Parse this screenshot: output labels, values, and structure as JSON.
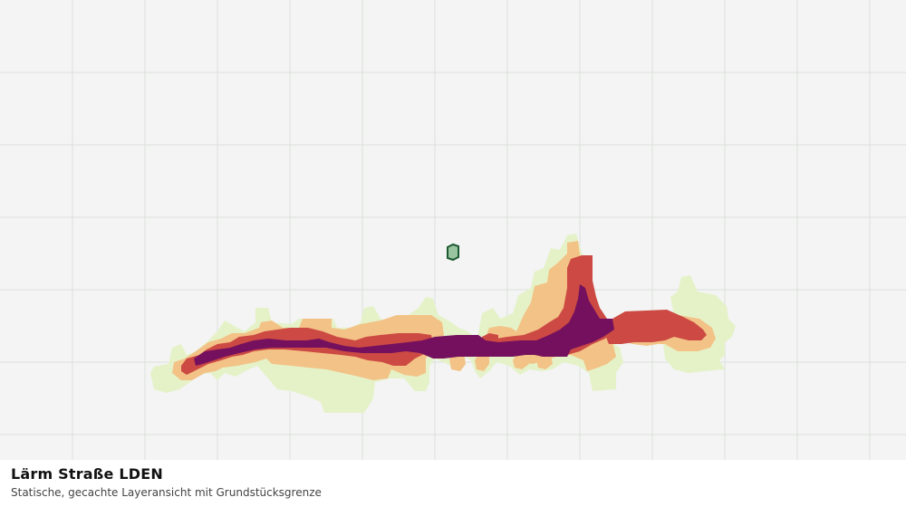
{
  "caption": {
    "title": "Lärm Straße LDEN",
    "subtitle": "Statische, gecachte Layeransicht mit Grundstücksgrenze"
  },
  "map": {
    "background_color": "#f3f4f3",
    "grid_color": "#dcdfdc",
    "noise_classes": [
      {
        "name": "class-1",
        "color": "#e5f2c8"
      },
      {
        "name": "class-2",
        "color": "#f3c286"
      },
      {
        "name": "class-3",
        "color": "#cc4a43"
      },
      {
        "name": "class-4",
        "color": "#74105e"
      }
    ],
    "parcel": {
      "fill": "#98c4a0",
      "stroke": "#1e5a32"
    }
  }
}
